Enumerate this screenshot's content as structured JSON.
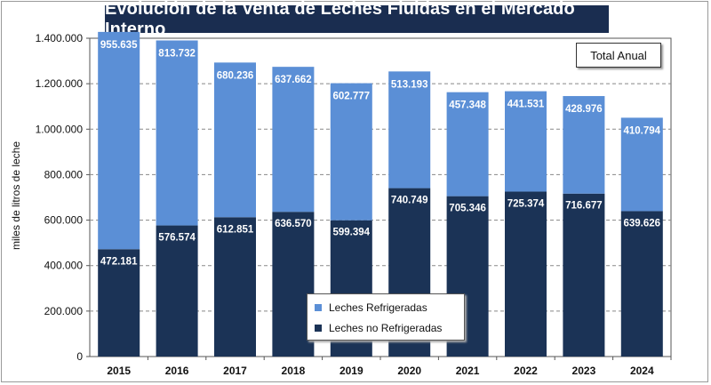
{
  "title": "Evolución de la Venta de Leches Fluidas en el Mercado Interno",
  "annotation": "Total Anual",
  "colors": {
    "refrigeradas": "#5b8fd6",
    "no_refrigeradas": "#1b3356",
    "title_bg": "#1a2d50"
  },
  "chart_data": {
    "type": "bar",
    "stacked": true,
    "title": "Evolución de la Venta de Leches Fluidas en el Mercado Interno",
    "xlabel": "",
    "ylabel": "miles de litros de leche",
    "ylim": [
      0,
      1400000
    ],
    "yticks": [
      0,
      200000,
      400000,
      600000,
      800000,
      1000000,
      1200000,
      1400000
    ],
    "ytick_labels": [
      "0",
      "200.000",
      "400.000",
      "600.000",
      "800.000",
      "1.000.000",
      "1.200.000",
      "1.400.000"
    ],
    "categories": [
      "2015",
      "2016",
      "2017",
      "2018",
      "2019",
      "2020",
      "2021",
      "2022",
      "2023",
      "2024"
    ],
    "grid": true,
    "legend_position": "bottom-center",
    "series": [
      {
        "name": "Leches no Refrigeradas",
        "values": [
          472181,
          576574,
          612851,
          636570,
          599394,
          740749,
          705346,
          725374,
          716677,
          639626
        ],
        "labels": [
          "472.181",
          "576.574",
          "612.851",
          "636.570",
          "599.394",
          "740.749",
          "705.346",
          "725.374",
          "716.677",
          "639.626"
        ]
      },
      {
        "name": "Leches Refrigeradas",
        "values": [
          955635,
          813732,
          680236,
          637662,
          602777,
          513193,
          457348,
          441531,
          428976,
          410794
        ],
        "labels": [
          "955.635",
          "813.732",
          "680.236",
          "637.662",
          "602.777",
          "513.193",
          "457.348",
          "441.531",
          "428.976",
          "410.794"
        ]
      }
    ]
  }
}
